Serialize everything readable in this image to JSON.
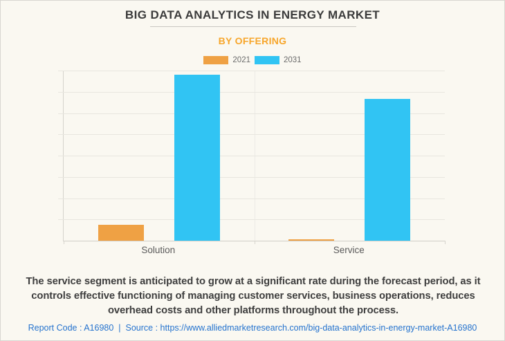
{
  "header": {
    "title": "BIG DATA ANALYTICS IN ENERGY MARKET",
    "subtitle": "BY OFFERING"
  },
  "colors": {
    "subtitle_orange": "#F7A62B",
    "bar_2021_orange": "#EFA144",
    "bar_2031_blue": "#31C4F3",
    "link_blue": "#2573CE",
    "background_cream": "#FAF8F1"
  },
  "chart_data": {
    "type": "bar",
    "title": "BIG DATA ANALYTICS IN ENERGY MARKET",
    "subtitle": "BY OFFERING",
    "categories": [
      "Solution",
      "Service"
    ],
    "series": [
      {
        "name": "2021",
        "color": "#EFA144",
        "values": [
          9.5,
          1.0
        ]
      },
      {
        "name": "2031",
        "color": "#31C4F3",
        "values": [
          97.5,
          83.5
        ]
      }
    ],
    "xlabel": "",
    "ylabel": "",
    "ylim": [
      0,
      100
    ],
    "value_note": "y-axis has no tick labels; values estimated as percent of axis maximum",
    "grid": true,
    "legend_position": "top-center",
    "layout": {
      "gridline_rows": 8,
      "bar_width_pct": 12,
      "series_center_pct": [
        15,
        35
      ]
    }
  },
  "description": {
    "text": "The service segment is anticipated to grow at a significant rate during the forecast period, as it controls effective functioning of managing customer services, business operations, reduces overhead costs and other platforms throughout the process."
  },
  "footer": {
    "report_code_label": "Report Code : A16980",
    "separator": "|",
    "source_label": "Source :",
    "url": "https://www.alliedmarketresearch.com/big-data-analytics-in-energy-market-A16980"
  }
}
